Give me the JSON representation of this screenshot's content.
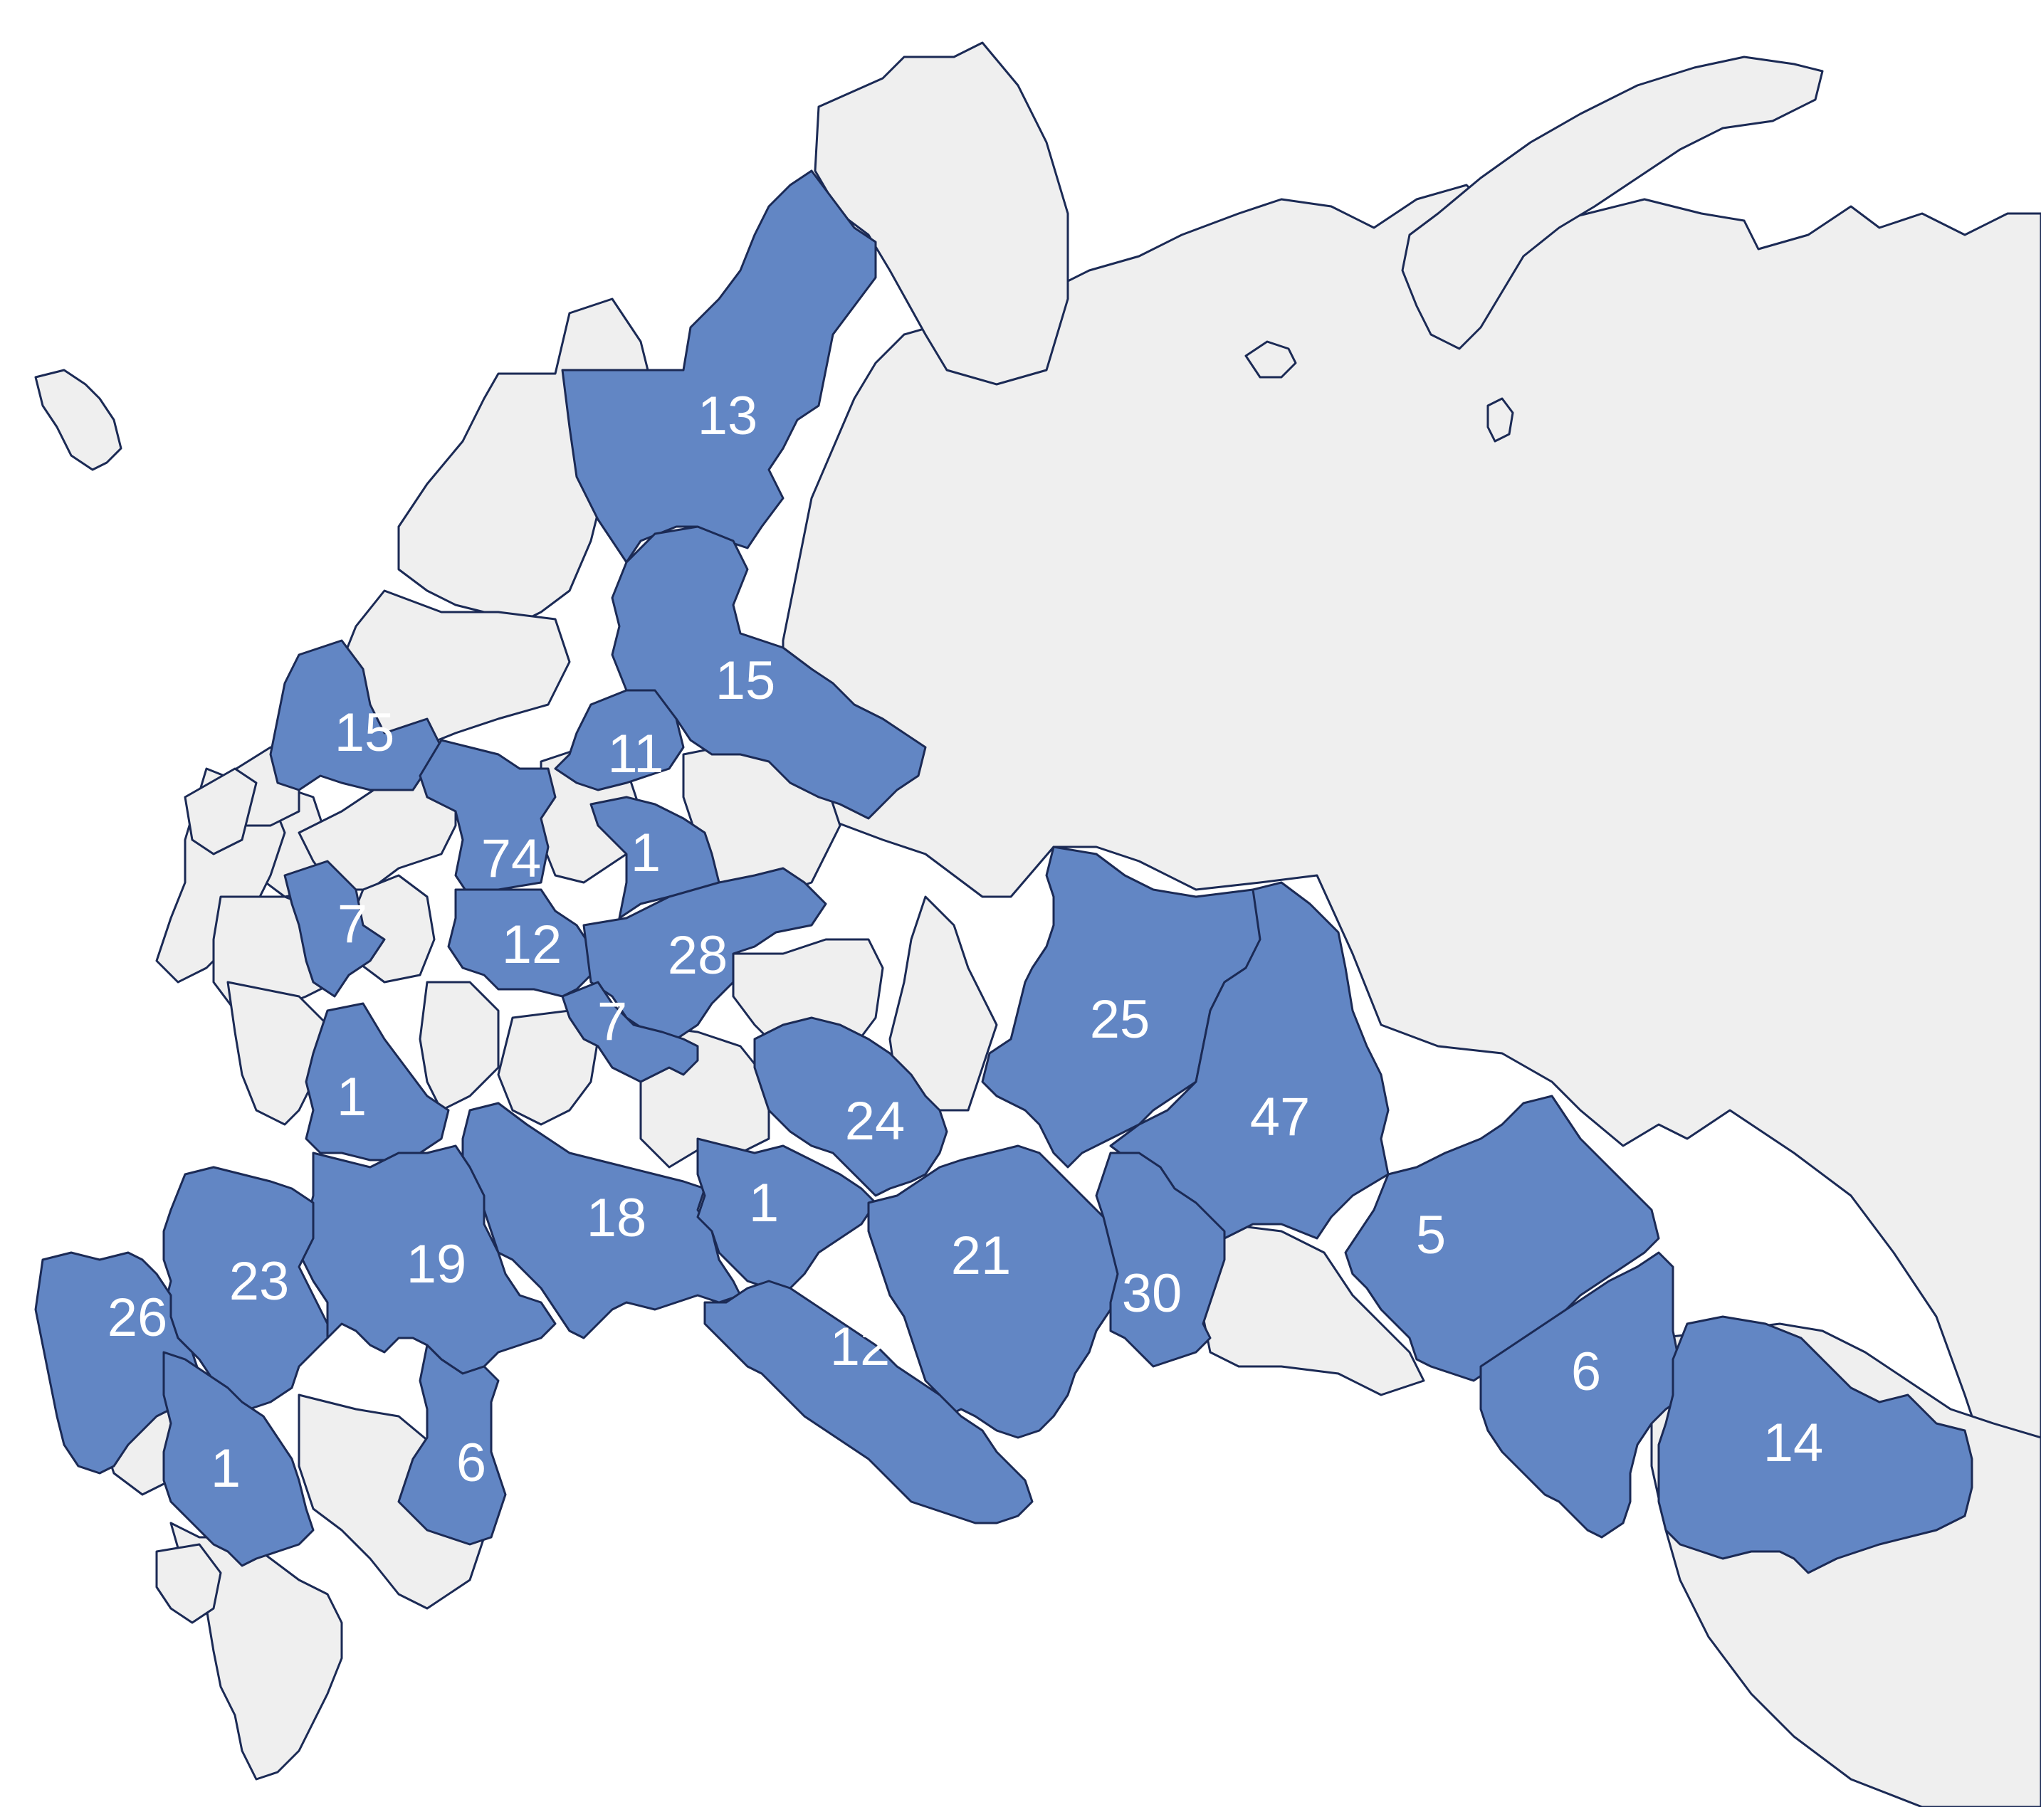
{
  "colors": {
    "highlight": "#6286c4",
    "base": "#efefef",
    "border": "#1b2a55",
    "label": "#ffffff"
  },
  "labels": [
    "13",
    "15",
    "15",
    "11",
    "74",
    "1",
    "7",
    "12",
    "28",
    "7",
    "1",
    "24",
    "25",
    "47",
    "18",
    "1",
    "19",
    "23",
    "26",
    "21",
    "30",
    "5",
    "6",
    "12",
    "6",
    "1",
    "14"
  ]
}
